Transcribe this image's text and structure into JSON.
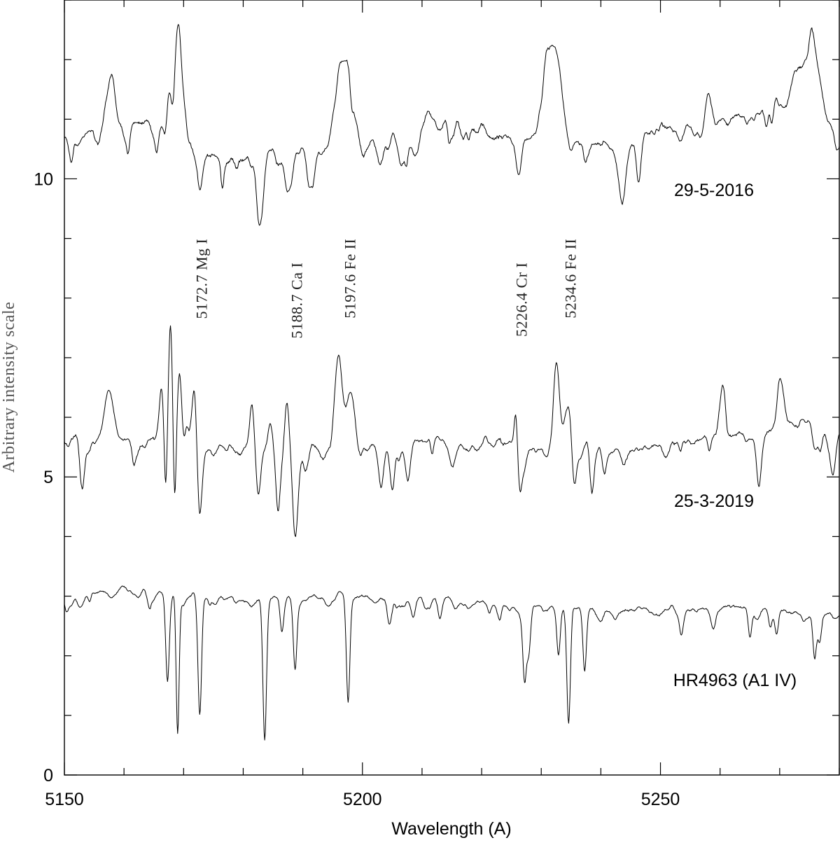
{
  "chart_data": {
    "type": "line",
    "xlabel": "Wavelength (A)",
    "ylabel": "Arbitrary intensity scale",
    "xlim": [
      5150,
      5280
    ],
    "ylim": [
      0,
      13
    ],
    "x_ticks": [
      5150,
      5200,
      5250
    ],
    "y_ticks": [
      0,
      5,
      10
    ],
    "grid": false,
    "series": [
      {
        "name": "29-5-2016",
        "offset": 11.0,
        "noise": 0.1,
        "features": [
          [
            5158.0,
            0.9,
            0.8
          ],
          [
            5167.5,
            0.5,
            0.4
          ],
          [
            5169.0,
            1.9,
            0.7
          ],
          [
            5170.5,
            0.4,
            0.5
          ],
          [
            5168.3,
            -0.5,
            0.3
          ],
          [
            5172.7,
            -0.6,
            0.4
          ],
          [
            5182.8,
            -0.8,
            0.5
          ],
          [
            5187.5,
            -0.7,
            0.5
          ],
          [
            5191.5,
            -0.6,
            0.5
          ],
          [
            5196.0,
            1.2,
            0.8
          ],
          [
            5197.6,
            1.2,
            0.8
          ],
          [
            5203.0,
            -0.5,
            0.5
          ],
          [
            5206.5,
            -0.6,
            0.5
          ],
          [
            5209.0,
            -0.5,
            0.5
          ],
          [
            5231.0,
            1.3,
            0.9
          ],
          [
            5232.8,
            1.4,
            0.9
          ],
          [
            5226.4,
            -0.4,
            0.4
          ],
          [
            5243.5,
            -0.8,
            0.6
          ],
          [
            5258.0,
            0.5,
            0.5
          ],
          [
            5273.0,
            0.7,
            1.2
          ],
          [
            5275.5,
            1.3,
            1.0
          ]
        ],
        "baseline": [
          [
            5150,
            10.7
          ],
          [
            5163,
            10.95
          ],
          [
            5172,
            10.4
          ],
          [
            5180,
            10.35
          ],
          [
            5200,
            10.6
          ],
          [
            5212,
            11.0
          ],
          [
            5222,
            10.7
          ],
          [
            5240,
            10.6
          ],
          [
            5255,
            10.9
          ],
          [
            5270,
            11.2
          ],
          [
            5280,
            10.9
          ]
        ]
      },
      {
        "name": "25-3-2019",
        "offset": 5.7,
        "noise": 0.08,
        "features": [
          [
            5153.0,
            -0.9,
            0.4
          ],
          [
            5157.5,
            0.9,
            0.7
          ],
          [
            5166.3,
            0.9,
            0.4
          ],
          [
            5167.0,
            -1.0,
            0.25
          ],
          [
            5167.8,
            2.0,
            0.35
          ],
          [
            5168.5,
            -1.0,
            0.25
          ],
          [
            5169.3,
            1.4,
            0.4
          ],
          [
            5170.6,
            0.6,
            0.5
          ],
          [
            5171.8,
            0.9,
            0.35
          ],
          [
            5172.7,
            -1.1,
            0.35
          ],
          [
            5181.5,
            0.9,
            0.4
          ],
          [
            5182.5,
            -0.8,
            0.4
          ],
          [
            5184.5,
            0.5,
            0.4
          ],
          [
            5185.8,
            -0.9,
            0.35
          ],
          [
            5187.3,
            0.7,
            0.35
          ],
          [
            5188.7,
            -1.3,
            0.45
          ],
          [
            5190.5,
            -0.4,
            0.4
          ],
          [
            5196.0,
            1.5,
            0.6
          ],
          [
            5198.0,
            0.9,
            0.7
          ],
          [
            5203.2,
            -0.6,
            0.4
          ],
          [
            5205.0,
            -0.8,
            0.4
          ],
          [
            5207.5,
            -0.5,
            0.4
          ],
          [
            5225.8,
            0.7,
            0.3
          ],
          [
            5226.4,
            -0.8,
            0.4
          ],
          [
            5232.5,
            1.5,
            0.5
          ],
          [
            5234.6,
            0.7,
            0.8
          ],
          [
            5235.5,
            -1.0,
            0.4
          ],
          [
            5238.5,
            -0.8,
            0.35
          ],
          [
            5260.5,
            0.9,
            0.5
          ],
          [
            5266.5,
            -0.8,
            0.4
          ],
          [
            5270.0,
            0.8,
            0.6
          ],
          [
            5279.0,
            -0.6,
            0.4
          ]
        ],
        "baseline": [
          [
            5150,
            5.75
          ],
          [
            5160,
            5.65
          ],
          [
            5175,
            5.5
          ],
          [
            5190,
            5.5
          ],
          [
            5210,
            5.6
          ],
          [
            5230,
            5.45
          ],
          [
            5245,
            5.45
          ],
          [
            5260,
            5.7
          ],
          [
            5275,
            5.85
          ],
          [
            5280,
            5.75
          ]
        ]
      },
      {
        "name": "HR4963 (A1 IV)",
        "offset": 3.0,
        "noise": 0.05,
        "features": [
          [
            5152.5,
            -0.2,
            0.4
          ],
          [
            5167.3,
            -1.4,
            0.3
          ],
          [
            5169.0,
            -2.3,
            0.25
          ],
          [
            5172.7,
            -1.9,
            0.3
          ],
          [
            5183.6,
            -2.4,
            0.3
          ],
          [
            5186.5,
            -0.6,
            0.3
          ],
          [
            5188.7,
            -1.2,
            0.3
          ],
          [
            5197.6,
            -1.8,
            0.3
          ],
          [
            5204.5,
            -0.3,
            0.4
          ],
          [
            5208.5,
            -0.3,
            0.4
          ],
          [
            5213.0,
            -0.3,
            0.3
          ],
          [
            5227.2,
            -1.2,
            0.3
          ],
          [
            5227.9,
            -0.8,
            0.3
          ],
          [
            5232.9,
            -0.8,
            0.3
          ],
          [
            5234.6,
            -2.0,
            0.3
          ],
          [
            5237.3,
            -1.1,
            0.3
          ],
          [
            5253.5,
            -0.3,
            0.3
          ],
          [
            5265.0,
            -0.5,
            0.3
          ],
          [
            5269.5,
            -0.4,
            0.3
          ],
          [
            5275.9,
            -0.6,
            0.3
          ],
          [
            5276.7,
            -0.5,
            0.3
          ]
        ],
        "baseline": [
          [
            5150,
            3.0
          ],
          [
            5160,
            3.1
          ],
          [
            5175,
            2.95
          ],
          [
            5200,
            3.0
          ],
          [
            5225,
            2.85
          ],
          [
            5250,
            2.75
          ],
          [
            5265,
            2.85
          ],
          [
            5280,
            2.65
          ]
        ]
      }
    ],
    "series_labels": [
      "29-5-2016",
      "25-3-2019",
      "HR4963 (A1 IV)"
    ],
    "line_labels": [
      {
        "text": "5172.7 Mg I",
        "x": 5172.7,
        "y_top": 9.0
      },
      {
        "text": "5188.7 Ca I",
        "x": 5188.7,
        "y_top": 8.6
      },
      {
        "text": "5197.6 Fe II",
        "x": 5197.6,
        "y_top": 9.0
      },
      {
        "text": "5226.4 Cr I",
        "x": 5226.4,
        "y_top": 8.6
      },
      {
        "text": "5234.6 Fe II",
        "x": 5234.6,
        "y_top": 9.0
      }
    ]
  }
}
